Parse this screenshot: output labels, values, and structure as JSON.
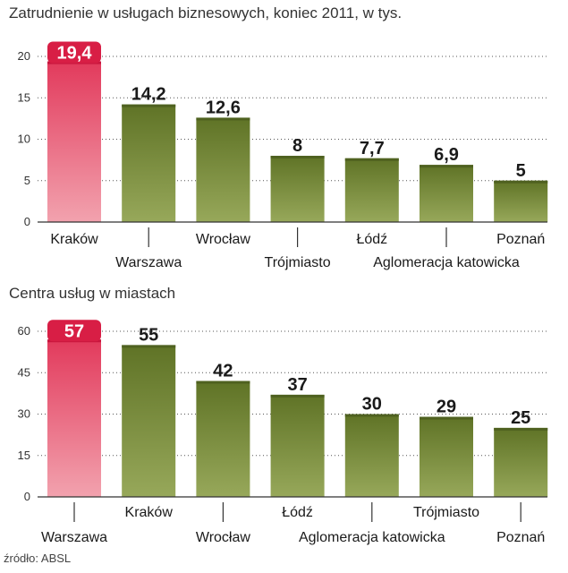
{
  "chart_data": [
    {
      "type": "bar",
      "title": "Zatrudnienie w usługach biznesowych, koniec 2011, w tys.",
      "categories": [
        "Kraków",
        "Warszawa",
        "Wrocław",
        "Trójmiasto",
        "Łódź",
        "Aglomeracja katowicka",
        "Poznań"
      ],
      "values": [
        19.4,
        14.2,
        12.6,
        8,
        7.7,
        6.9,
        5
      ],
      "value_labels": [
        "19,4",
        "14,2",
        "12,6",
        "8",
        "7,7",
        "6,9",
        "5"
      ],
      "highlight_index": 0,
      "yticks": [
        "0",
        "5",
        "10",
        "15",
        "20"
      ],
      "ylim": [
        0,
        20
      ],
      "xlabel": "",
      "ylabel": ""
    },
    {
      "type": "bar",
      "title": "Centra usług w miastach",
      "categories": [
        "Warszawa",
        "Kraków",
        "Wrocław",
        "Łódź",
        "Aglomeracja katowicka",
        "Trójmiasto",
        "Poznań"
      ],
      "values": [
        57,
        55,
        42,
        37,
        30,
        29,
        25
      ],
      "value_labels": [
        "57",
        "55",
        "42",
        "37",
        "30",
        "29",
        "25"
      ],
      "highlight_index": 0,
      "yticks": [
        "0",
        "15",
        "30",
        "45",
        "60"
      ],
      "ylim": [
        0,
        60
      ],
      "xlabel": "",
      "ylabel": ""
    }
  ],
  "source": "źródło: ABSL",
  "colors": {
    "bar": "#6b7f2e",
    "bar_light": "#8a9c4a",
    "highlight": "#e0506a",
    "highlight_light": "#f09aa8",
    "axis": "#333333"
  }
}
